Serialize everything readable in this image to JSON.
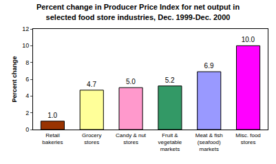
{
  "chart_data": {
    "type": "bar",
    "title": "Percent change in Producer Price Index for net output in\nselected food store industries, Dec. 1999-Dec. 2000",
    "categories": [
      "Retail\nbakeries",
      "Grocery\nstores",
      "Candy & nut\nstores",
      "Fruit &\nvegetable\nmarkets",
      "Meat & fish\n(seafood)\nmarkets",
      "Misc. food\nstores"
    ],
    "values": [
      1.0,
      4.7,
      5.0,
      5.2,
      6.9,
      10.0
    ],
    "value_labels": [
      "1.0",
      "4.7",
      "5.0",
      "5.2",
      "6.9",
      "10.0"
    ],
    "colors": [
      "#993300",
      "#ffff99",
      "#ff99cc",
      "#339966",
      "#9999ff",
      "#ff00ff"
    ],
    "y_label": "Percent change",
    "ylim": [
      0,
      12
    ],
    "yticks": [
      0,
      2,
      4,
      6,
      8,
      10,
      12
    ],
    "grid": false,
    "data_labels": true
  }
}
